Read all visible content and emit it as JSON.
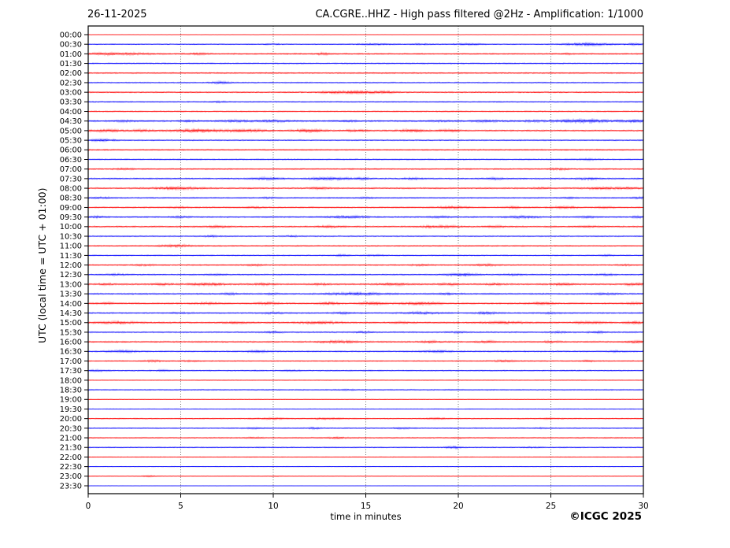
{
  "header": {
    "date": "26-11-2025",
    "title": "CA.CGRE..HHZ - High pass filtered @2Hz - Amplification: 1/1000"
  },
  "footer": {
    "xlabel": "time in minutes",
    "copyright": "©ICGC 2025"
  },
  "axes": {
    "ylabel": "UTC (local time = UTC + 01:00)",
    "x_ticks": [
      0,
      5,
      10,
      15,
      20,
      25,
      30
    ],
    "x_range": [
      0,
      30
    ],
    "grid_minutes": [
      5,
      10,
      15,
      20,
      25
    ],
    "grid_style": "dotted"
  },
  "colors": {
    "trace_red": "#ff0000",
    "trace_blue": "#0000ff",
    "grid": "#444444",
    "axis": "#000000",
    "background": "#ffffff"
  },
  "chart_data": {
    "type": "line",
    "subtype": "helicorder-seismogram",
    "title": "CA.CGRE..HHZ - High pass filtered @2Hz - Amplification: 1/1000",
    "xlabel": "time in minutes",
    "ylabel": "UTC (local time = UTC + 01:00)",
    "x_range": [
      0,
      30
    ],
    "row_interval_minutes": 30,
    "burst_format": "[minute_center, half_width_minutes, extra_amplitude]",
    "rows": [
      {
        "label": "00:00",
        "color": "red",
        "noise": 0.25,
        "bursts": [
          [
            24,
            6,
            0.25
          ]
        ]
      },
      {
        "label": "00:30",
        "color": "blue",
        "noise": 0.8,
        "bursts": [
          [
            10,
            0.4,
            0.8
          ],
          [
            15.5,
            0.8,
            1.2
          ],
          [
            18,
            0.5,
            0.8
          ],
          [
            20.5,
            0.8,
            1.0
          ],
          [
            27,
            1.2,
            2.2
          ],
          [
            29.5,
            0.5,
            1.2
          ]
        ]
      },
      {
        "label": "01:00",
        "color": "red",
        "noise": 1.2,
        "bursts": [
          [
            1.5,
            1.5,
            1.5
          ],
          [
            6,
            0.5,
            0.8
          ],
          [
            12.7,
            0.3,
            1.5
          ],
          [
            25.8,
            0.3,
            0.8
          ]
        ]
      },
      {
        "label": "01:30",
        "color": "blue",
        "noise": 1.1,
        "bursts": []
      },
      {
        "label": "02:00",
        "color": "red",
        "noise": 1.1,
        "bursts": []
      },
      {
        "label": "02:30",
        "color": "blue",
        "noise": 1.0,
        "bursts": [
          [
            7.2,
            0.5,
            1.5
          ]
        ]
      },
      {
        "label": "03:00",
        "color": "red",
        "noise": 1.1,
        "bursts": [
          [
            13.5,
            1.0,
            1.5
          ],
          [
            14.8,
            0.8,
            1.5
          ],
          [
            16,
            0.6,
            1.2
          ]
        ]
      },
      {
        "label": "03:30",
        "color": "blue",
        "noise": 1.0,
        "bursts": [
          [
            7,
            0.4,
            0.8
          ]
        ]
      },
      {
        "label": "04:00",
        "color": "red",
        "noise": 1.1,
        "bursts": []
      },
      {
        "label": "04:30",
        "color": "blue",
        "noise": 1.3,
        "bursts": [
          [
            2,
            0.5,
            0.8
          ],
          [
            5.5,
            0.5,
            1.0
          ],
          [
            8,
            0.8,
            1.2
          ],
          [
            10,
            0.8,
            1.3
          ],
          [
            14,
            0.6,
            0.8
          ],
          [
            19,
            0.5,
            0.8
          ],
          [
            21.5,
            0.8,
            1.0
          ],
          [
            24,
            0.6,
            1.0
          ],
          [
            26.8,
            1.5,
            2.5
          ],
          [
            29.5,
            0.8,
            1.5
          ]
        ]
      },
      {
        "label": "05:00",
        "color": "red",
        "noise": 1.3,
        "bursts": [
          [
            1,
            0.8,
            1.5
          ],
          [
            3,
            0.6,
            1.2
          ],
          [
            5.8,
            1.2,
            2.2
          ],
          [
            8.5,
            1.0,
            1.8
          ],
          [
            12,
            0.8,
            2.0
          ],
          [
            14.5,
            0.6,
            1.2
          ],
          [
            17.5,
            0.8,
            1.5
          ],
          [
            19.5,
            0.6,
            1.2
          ]
        ]
      },
      {
        "label": "05:30",
        "color": "blue",
        "noise": 1.0,
        "bursts": [
          [
            0.7,
            0.8,
            1.5
          ]
        ]
      },
      {
        "label": "06:00",
        "color": "red",
        "noise": 1.1,
        "bursts": []
      },
      {
        "label": "06:30",
        "color": "blue",
        "noise": 1.1,
        "bursts": [
          [
            27,
            0.5,
            0.8
          ]
        ]
      },
      {
        "label": "07:00",
        "color": "red",
        "noise": 1.1,
        "bursts": [
          [
            2,
            0.5,
            0.8
          ],
          [
            25.5,
            0.5,
            1.2
          ]
        ]
      },
      {
        "label": "07:30",
        "color": "blue",
        "noise": 1.2,
        "bursts": [
          [
            9.7,
            0.8,
            1.5
          ],
          [
            13,
            1.0,
            1.8
          ],
          [
            14.8,
            0.5,
            1.2
          ],
          [
            17.5,
            0.5,
            0.8
          ],
          [
            22,
            0.5,
            1.0
          ],
          [
            27,
            0.6,
            1.0
          ]
        ]
      },
      {
        "label": "08:00",
        "color": "red",
        "noise": 1.2,
        "bursts": [
          [
            4.8,
            1.2,
            1.8
          ],
          [
            12.5,
            0.5,
            1.2
          ],
          [
            24.5,
            0.5,
            0.8
          ],
          [
            27.8,
            1.0,
            1.2
          ],
          [
            29.3,
            0.5,
            1.0
          ]
        ]
      },
      {
        "label": "08:30",
        "color": "blue",
        "noise": 1.0,
        "bursts": [
          [
            0.8,
            0.6,
            1.0
          ],
          [
            9.7,
            0.4,
            1.0
          ],
          [
            15,
            0.4,
            0.8
          ],
          [
            26,
            0.4,
            0.8
          ],
          [
            29.8,
            0.3,
            1.5
          ]
        ]
      },
      {
        "label": "09:00",
        "color": "red",
        "noise": 1.2,
        "bursts": [
          [
            5,
            0.5,
            0.8
          ],
          [
            9,
            0.5,
            0.8
          ],
          [
            19.7,
            0.8,
            1.3
          ],
          [
            23,
            0.5,
            1.0
          ],
          [
            25.7,
            0.6,
            1.3
          ],
          [
            28,
            0.5,
            0.8
          ]
        ]
      },
      {
        "label": "09:30",
        "color": "blue",
        "noise": 1.2,
        "bursts": [
          [
            0.5,
            0.5,
            1.0
          ],
          [
            5,
            0.5,
            0.8
          ],
          [
            14,
            1.0,
            1.5
          ],
          [
            19,
            0.5,
            1.0
          ],
          [
            23.5,
            0.8,
            1.3
          ],
          [
            27,
            0.5,
            0.8
          ],
          [
            29.7,
            0.3,
            1.2
          ]
        ]
      },
      {
        "label": "10:00",
        "color": "red",
        "noise": 1.2,
        "bursts": [
          [
            7,
            0.6,
            1.2
          ],
          [
            13,
            0.6,
            1.3
          ],
          [
            19,
            1.0,
            1.5
          ],
          [
            22,
            0.5,
            1.0
          ],
          [
            27,
            0.5,
            0.8
          ]
        ]
      },
      {
        "label": "10:30",
        "color": "blue",
        "noise": 1.0,
        "bursts": [
          [
            6.7,
            0.5,
            1.0
          ],
          [
            11,
            0.4,
            0.8
          ]
        ]
      },
      {
        "label": "11:00",
        "color": "red",
        "noise": 1.0,
        "bursts": [
          [
            4.7,
            0.8,
            1.8
          ]
        ]
      },
      {
        "label": "11:30",
        "color": "blue",
        "noise": 1.0,
        "bursts": [
          [
            13.7,
            0.5,
            1.0
          ],
          [
            15.5,
            0.4,
            0.8
          ],
          [
            28,
            0.4,
            0.8
          ]
        ]
      },
      {
        "label": "12:00",
        "color": "red",
        "noise": 1.1,
        "bursts": [
          [
            3,
            0.5,
            0.8
          ],
          [
            9,
            0.5,
            1.0
          ],
          [
            18,
            0.5,
            1.0
          ],
          [
            21.5,
            0.6,
            1.2
          ],
          [
            29,
            0.4,
            0.8
          ]
        ]
      },
      {
        "label": "12:30",
        "color": "blue",
        "noise": 1.1,
        "bursts": [
          [
            1.5,
            0.5,
            1.0
          ],
          [
            7,
            0.5,
            0.8
          ],
          [
            20.2,
            0.8,
            1.8
          ],
          [
            23,
            0.5,
            1.0
          ],
          [
            28,
            0.5,
            1.0
          ]
        ]
      },
      {
        "label": "13:00",
        "color": "red",
        "noise": 1.3,
        "bursts": [
          [
            1,
            0.5,
            0.8
          ],
          [
            4,
            0.5,
            1.0
          ],
          [
            6.5,
            1.0,
            1.5
          ],
          [
            9.5,
            0.5,
            1.2
          ],
          [
            12.5,
            0.5,
            1.0
          ],
          [
            16.5,
            0.8,
            1.3
          ],
          [
            19.5,
            0.5,
            1.2
          ],
          [
            22,
            0.5,
            1.0
          ],
          [
            25.5,
            0.6,
            1.2
          ],
          [
            29.5,
            0.5,
            1.3
          ]
        ]
      },
      {
        "label": "13:30",
        "color": "blue",
        "noise": 1.2,
        "bursts": [
          [
            7.7,
            0.5,
            1.0
          ],
          [
            10,
            0.5,
            0.8
          ],
          [
            14.5,
            1.5,
            1.8
          ],
          [
            19.5,
            0.5,
            1.0
          ],
          [
            28,
            0.6,
            1.0
          ]
        ]
      },
      {
        "label": "14:00",
        "color": "red",
        "noise": 1.3,
        "bursts": [
          [
            1,
            0.5,
            1.0
          ],
          [
            6.5,
            0.6,
            1.2
          ],
          [
            9.7,
            0.6,
            1.3
          ],
          [
            13,
            0.5,
            1.5
          ],
          [
            15.3,
            0.6,
            1.8
          ],
          [
            18,
            1.0,
            1.8
          ],
          [
            24.5,
            0.6,
            1.2
          ],
          [
            29.5,
            0.4,
            1.0
          ]
        ]
      },
      {
        "label": "14:30",
        "color": "blue",
        "noise": 1.2,
        "bursts": [
          [
            5,
            0.5,
            0.8
          ],
          [
            10,
            0.6,
            1.0
          ],
          [
            13.8,
            0.5,
            1.0
          ],
          [
            18,
            1.0,
            1.3
          ],
          [
            21.5,
            0.6,
            1.2
          ],
          [
            25,
            0.5,
            0.8
          ]
        ]
      },
      {
        "label": "15:00",
        "color": "red",
        "noise": 1.3,
        "bursts": [
          [
            1.5,
            1.0,
            1.5
          ],
          [
            8,
            0.6,
            1.0
          ],
          [
            12.5,
            1.0,
            1.5
          ],
          [
            17,
            0.5,
            1.0
          ],
          [
            22.5,
            1.0,
            1.3
          ],
          [
            27,
            0.8,
            1.2
          ],
          [
            29.5,
            0.4,
            1.5
          ]
        ]
      },
      {
        "label": "15:30",
        "color": "blue",
        "noise": 1.1,
        "bursts": [
          [
            10,
            0.5,
            1.0
          ],
          [
            15,
            0.5,
            1.0
          ],
          [
            20,
            0.5,
            0.8
          ],
          [
            25.5,
            0.5,
            1.0
          ],
          [
            27.5,
            0.5,
            1.0
          ]
        ]
      },
      {
        "label": "16:00",
        "color": "red",
        "noise": 1.2,
        "bursts": [
          [
            13.5,
            1.0,
            1.5
          ],
          [
            18.5,
            0.5,
            1.2
          ],
          [
            21.5,
            0.5,
            1.2
          ],
          [
            25,
            0.5,
            1.0
          ],
          [
            29.6,
            0.4,
            1.5
          ]
        ]
      },
      {
        "label": "16:30",
        "color": "blue",
        "noise": 1.1,
        "bursts": [
          [
            1.8,
            0.8,
            1.3
          ],
          [
            9.2,
            0.6,
            1.3
          ],
          [
            18.8,
            0.8,
            1.3
          ],
          [
            28.5,
            0.4,
            0.8
          ]
        ]
      },
      {
        "label": "17:00",
        "color": "red",
        "noise": 1.0,
        "bursts": [
          [
            3.5,
            0.5,
            1.0
          ],
          [
            5.5,
            0.4,
            0.8
          ],
          [
            22.5,
            0.6,
            1.0
          ],
          [
            27,
            0.4,
            0.8
          ]
        ]
      },
      {
        "label": "17:30",
        "color": "blue",
        "noise": 1.0,
        "bursts": [
          [
            0.5,
            0.5,
            1.0
          ],
          [
            4,
            0.5,
            0.8
          ],
          [
            11,
            0.4,
            0.8
          ]
        ]
      },
      {
        "label": "18:00",
        "color": "red",
        "noise": 0.6,
        "bursts": []
      },
      {
        "label": "18:30",
        "color": "blue",
        "noise": 0.9,
        "bursts": [
          [
            14,
            0.5,
            0.6
          ]
        ]
      },
      {
        "label": "19:00",
        "color": "red",
        "noise": 0.5,
        "bursts": []
      },
      {
        "label": "19:30",
        "color": "blue",
        "noise": 0.7,
        "bursts": []
      },
      {
        "label": "20:00",
        "color": "red",
        "noise": 0.9,
        "bursts": [
          [
            10,
            0.8,
            1.0
          ],
          [
            13,
            0.8,
            1.0
          ],
          [
            18.8,
            0.5,
            1.0
          ],
          [
            25,
            0.5,
            0.6
          ]
        ]
      },
      {
        "label": "20:30",
        "color": "blue",
        "noise": 0.9,
        "bursts": [
          [
            9,
            0.5,
            0.8
          ],
          [
            12.2,
            0.4,
            1.0
          ],
          [
            17,
            0.5,
            0.8
          ],
          [
            24.5,
            0.4,
            0.6
          ]
        ]
      },
      {
        "label": "21:00",
        "color": "red",
        "noise": 0.9,
        "bursts": [
          [
            9,
            0.5,
            0.8
          ],
          [
            13.5,
            0.5,
            1.0
          ],
          [
            20,
            0.4,
            0.6
          ]
        ]
      },
      {
        "label": "21:30",
        "color": "blue",
        "noise": 0.9,
        "bursts": [
          [
            19.7,
            0.4,
            1.8
          ],
          [
            24,
            0.5,
            0.6
          ]
        ]
      },
      {
        "label": "22:00",
        "color": "red",
        "noise": 0.7,
        "bursts": []
      },
      {
        "label": "22:30",
        "color": "blue",
        "noise": 0.6,
        "bursts": []
      },
      {
        "label": "23:00",
        "color": "red",
        "noise": 0.5,
        "bursts": [
          [
            3.3,
            0.4,
            1.0
          ],
          [
            10.2,
            0.3,
            0.5
          ]
        ]
      },
      {
        "label": "23:30",
        "color": "blue",
        "noise": 0.4,
        "bursts": []
      }
    ]
  }
}
